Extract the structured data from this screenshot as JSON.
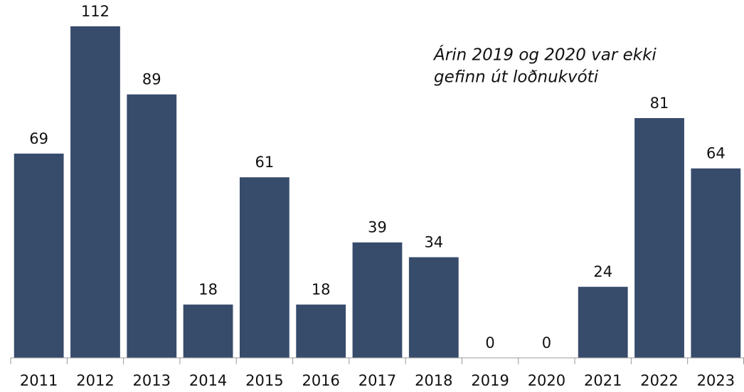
{
  "chart_data": {
    "type": "bar",
    "categories": [
      "2011",
      "2012",
      "2013",
      "2014",
      "2015",
      "2016",
      "2017",
      "2018",
      "2019",
      "2020",
      "2021",
      "2022",
      "2023"
    ],
    "values": [
      69,
      112,
      89,
      18,
      61,
      18,
      39,
      34,
      0,
      0,
      24,
      81,
      64
    ],
    "color": "#374b6b",
    "annotation": [
      "Árin 2019 og 2020 var ekki",
      "gefinn út loðnukvóti"
    ]
  }
}
